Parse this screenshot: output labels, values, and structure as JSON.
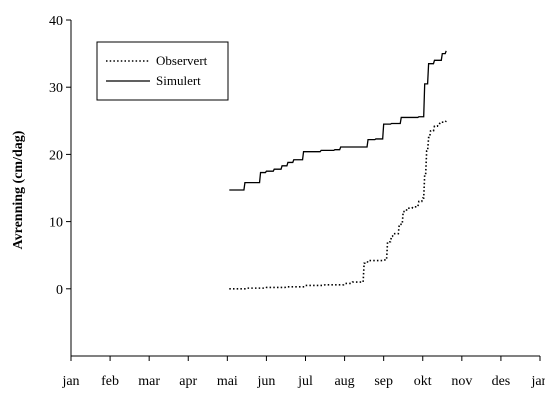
{
  "chart_data": {
    "type": "line",
    "title": "",
    "xlabel": "",
    "ylabel": "Avrenning (cm/dag)",
    "xlim": [
      0,
      12
    ],
    "ylim": [
      -10,
      40
    ],
    "yticks": [
      0,
      10,
      20,
      30,
      40
    ],
    "x_tick_labels": [
      "jan",
      "feb",
      "mar",
      "apr",
      "mai",
      "jun",
      "jul",
      "aug",
      "sep",
      "okt",
      "nov",
      "des",
      "jan"
    ],
    "x_unit": "months since 1 January",
    "grid": false,
    "legend_position": "top-left",
    "series": [
      {
        "name": "Observert",
        "style": "dotted",
        "color": "#000000",
        "x": [
          4.05,
          4.5,
          5.0,
          5.5,
          6.0,
          6.5,
          7.0,
          7.2,
          7.5,
          7.6,
          7.75,
          8.0,
          8.1,
          8.2,
          8.25,
          8.4,
          8.5,
          8.6,
          8.75,
          8.9,
          9.0,
          9.05,
          9.1,
          9.15,
          9.2,
          9.3,
          9.4,
          9.45,
          9.6
        ],
        "values": [
          0,
          0.1,
          0.2,
          0.3,
          0.5,
          0.6,
          0.8,
          1.0,
          3.8,
          4.2,
          4.2,
          4.3,
          7.0,
          7.8,
          8.2,
          9.6,
          11.5,
          12.0,
          12.2,
          13.0,
          13.5,
          17.0,
          20.5,
          22.5,
          23.5,
          24.2,
          24.5,
          24.8,
          25.0
        ]
      },
      {
        "name": "Simulert",
        "style": "solid",
        "color": "#000000",
        "x": [
          4.05,
          4.45,
          4.85,
          5.0,
          5.2,
          5.4,
          5.55,
          5.7,
          5.95,
          6.4,
          6.6,
          6.75,
          6.9,
          7.6,
          7.8,
          8.0,
          8.2,
          8.45,
          8.9,
          9.05,
          9.15,
          9.3,
          9.5,
          9.6
        ],
        "values": [
          14.7,
          15.8,
          17.3,
          17.5,
          17.8,
          18.3,
          18.8,
          19.2,
          20.4,
          20.6,
          20.6,
          20.7,
          21.1,
          22.2,
          22.3,
          24.5,
          24.6,
          25.5,
          25.6,
          30.5,
          33.5,
          34.0,
          35.0,
          35.4
        ]
      }
    ]
  }
}
